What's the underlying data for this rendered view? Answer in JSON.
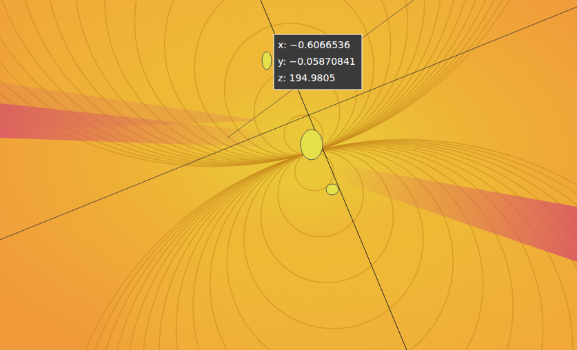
{
  "chart_data": {
    "type": "surface",
    "tick_labels": false,
    "annotations": [
      "x: −0.6066536",
      "y: −0.05870841",
      "z: 194.9805"
    ]
  }
}
